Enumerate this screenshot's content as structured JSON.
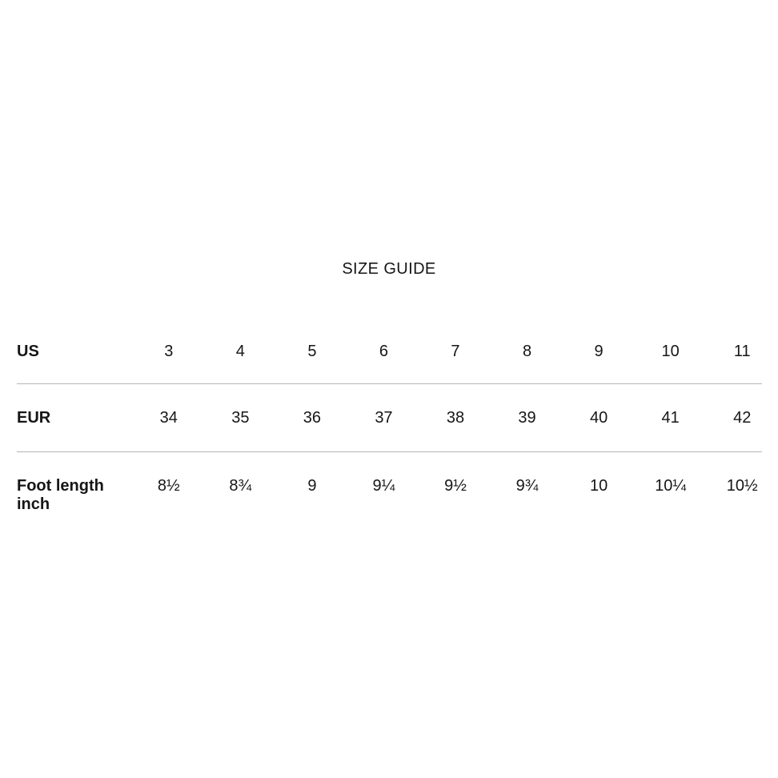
{
  "page": {
    "background": "#ffffff",
    "text_color": "#161616",
    "divider_color": "#b5b5b5"
  },
  "title": "SIZE GUIDE",
  "size_table": {
    "rows": [
      {
        "label": "US",
        "values": [
          "3",
          "4",
          "5",
          "6",
          "7",
          "8",
          "9",
          "10",
          "11"
        ]
      },
      {
        "label": "EUR",
        "values": [
          "34",
          "35",
          "36",
          "37",
          "38",
          "39",
          "40",
          "41",
          "42"
        ]
      },
      {
        "label": "Foot length inch",
        "values": [
          "8½",
          "8¾",
          "9",
          "9¼",
          "9½",
          "9¾",
          "10",
          "10¼",
          "10½"
        ]
      }
    ]
  },
  "chart_data": {
    "type": "table",
    "title": "SIZE GUIDE",
    "row_headers": [
      "US",
      "EUR",
      "Foot length inch"
    ],
    "rows": [
      [
        3,
        4,
        5,
        6,
        7,
        8,
        9,
        10,
        11
      ],
      [
        34,
        35,
        36,
        37,
        38,
        39,
        40,
        41,
        42
      ],
      [
        "8½",
        "8¾",
        "9",
        "9¼",
        "9½",
        "9¾",
        "10",
        "10¼",
        "10½"
      ]
    ]
  }
}
